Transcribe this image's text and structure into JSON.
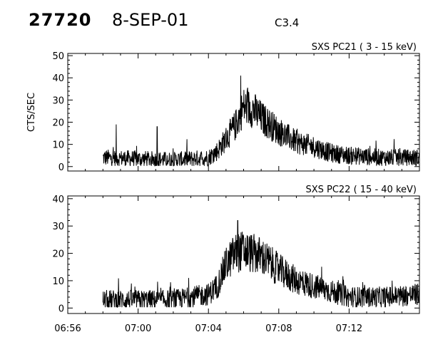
{
  "header": {
    "event_id": "27720",
    "date": "8-SEP-01",
    "flare_class": "C3.4"
  },
  "chart_data": [
    {
      "type": "line",
      "title": "SXS PC21  (  3 - 15 keV)",
      "ylabel": "CTS/SEC",
      "xlabel": "",
      "ylim": [
        -2,
        51
      ],
      "yticks": [
        0,
        10,
        20,
        30,
        40,
        50
      ],
      "xlim": [
        "06:56",
        "07:16"
      ],
      "xticks": [
        "06:56",
        "07:00",
        "07:04",
        "07:08",
        "07:12"
      ],
      "data_start": "06:58",
      "keyframes": [
        [
          "06:58",
          4
        ],
        [
          "07:02",
          3
        ],
        [
          "07:04",
          4
        ],
        [
          "07:04:30",
          7
        ],
        [
          "07:05:30",
          18
        ],
        [
          "07:06",
          27
        ],
        [
          "07:06:30",
          26
        ],
        [
          "07:07",
          22
        ],
        [
          "07:08",
          16
        ],
        [
          "07:09",
          11
        ],
        [
          "07:10",
          9
        ],
        [
          "07:11",
          6
        ],
        [
          "07:12",
          5
        ],
        [
          "07:14",
          4
        ],
        [
          "07:16",
          4
        ]
      ],
      "noise": 3,
      "spikes": [
        [
          "06:58:45",
          19
        ],
        [
          "07:01:05",
          18
        ]
      ],
      "peak": [
        "07:05:50",
        41
      ]
    },
    {
      "type": "line",
      "title": "SXS PC22  ( 15 - 40 keV)",
      "ylabel": "",
      "xlabel": "",
      "ylim": [
        -2,
        41
      ],
      "yticks": [
        0,
        10,
        20,
        30,
        40
      ],
      "xlim": [
        "06:56",
        "07:16"
      ],
      "xticks": [
        "06:56",
        "07:00",
        "07:04",
        "07:08",
        "07:12"
      ],
      "data_start": "06:58",
      "keyframes": [
        [
          "06:58",
          3
        ],
        [
          "07:02",
          3
        ],
        [
          "07:04",
          5
        ],
        [
          "07:04:30",
          8
        ],
        [
          "07:05",
          16
        ],
        [
          "07:05:30",
          20
        ],
        [
          "07:06",
          21
        ],
        [
          "07:07",
          19
        ],
        [
          "07:08",
          14
        ],
        [
          "07:09",
          10
        ],
        [
          "07:10",
          8
        ],
        [
          "07:11",
          6
        ],
        [
          "07:12",
          4
        ],
        [
          "07:14",
          4
        ],
        [
          "07:16",
          5
        ]
      ],
      "noise": 3,
      "spikes": [],
      "peak": [
        "07:05:40",
        32
      ]
    }
  ]
}
